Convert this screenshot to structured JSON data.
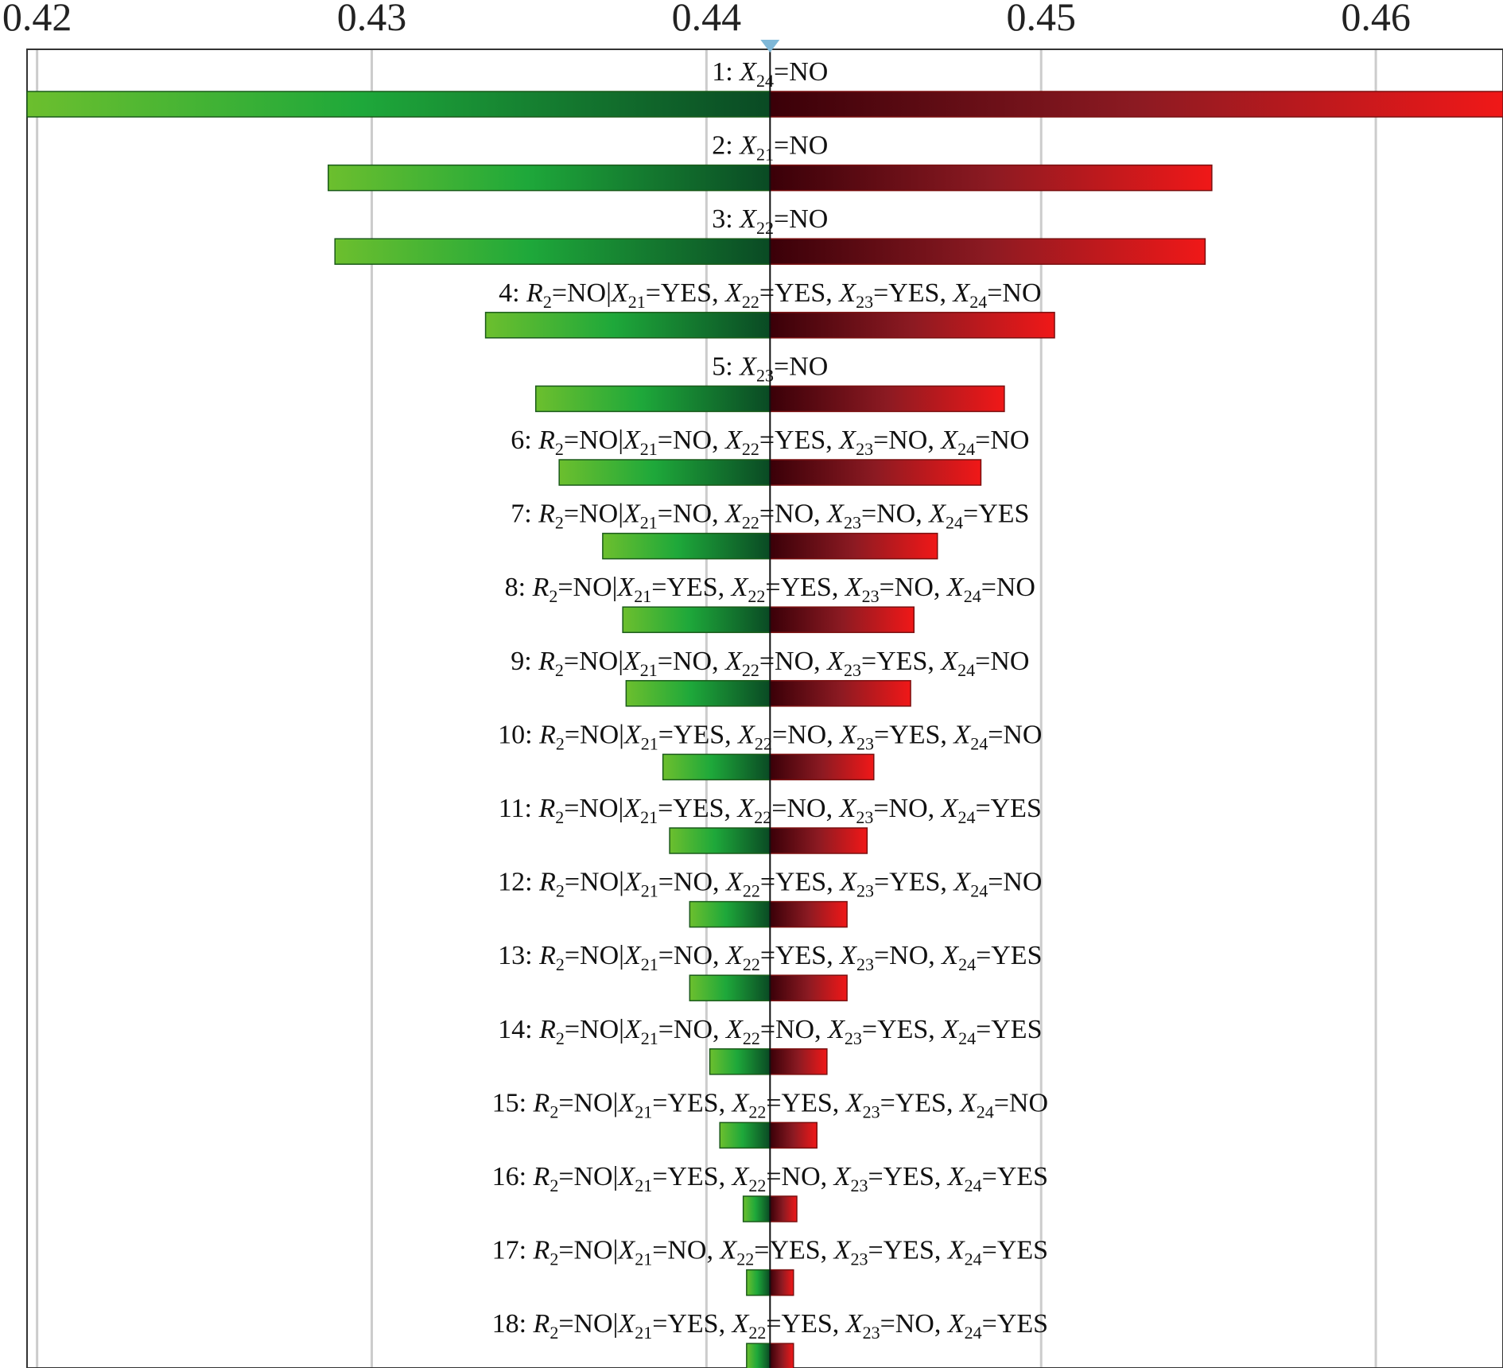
{
  "chart_data": {
    "type": "bar",
    "subtype": "tornado",
    "title": "",
    "xlabel": "",
    "ylabel": "",
    "xlim": [
      0.4197,
      0.4638
    ],
    "xticks": [
      0.42,
      0.43,
      0.44,
      0.45,
      0.46
    ],
    "xtick_labels": [
      "0.42",
      "0.43",
      "0.44",
      "0.45",
      "0.46"
    ],
    "grid": true,
    "base_value": 0.4419,
    "colors": {
      "low_light": "#6cbf2e",
      "low_mid": "#1ea83a",
      "low_dark": "#0a4a24",
      "high_dark": "#3a0008",
      "high_mid": "#8c1a22",
      "high_light": "#f01818",
      "grid": "#cccccc",
      "marker": "#7fb8d8"
    },
    "bars": [
      {
        "rank": 1,
        "label": "1: X24=NO",
        "parts": [
          {
            "t": "1: "
          },
          {
            "t": "X",
            "i": 1
          },
          {
            "t": "24",
            "s": 1
          },
          {
            "t": "=NO"
          }
        ],
        "low": 0.4197,
        "high": 0.4638
      },
      {
        "rank": 2,
        "label": "2: X21=NO",
        "parts": [
          {
            "t": "2: "
          },
          {
            "t": "X",
            "i": 1
          },
          {
            "t": "21",
            "s": 1
          },
          {
            "t": "=NO"
          }
        ],
        "low": 0.4287,
        "high": 0.4551
      },
      {
        "rank": 3,
        "label": "3: X22=NO",
        "parts": [
          {
            "t": "3: "
          },
          {
            "t": "X",
            "i": 1
          },
          {
            "t": "22",
            "s": 1
          },
          {
            "t": "=NO"
          }
        ],
        "low": 0.4289,
        "high": 0.4549
      },
      {
        "rank": 4,
        "label": "4: R2=NO|X21=YES, X22=YES, X23=YES, X24=NO",
        "parts": [
          {
            "t": "4: "
          },
          {
            "t": "R",
            "i": 1
          },
          {
            "t": "2",
            "s": 1
          },
          {
            "t": "=NO|"
          },
          {
            "t": "X",
            "i": 1
          },
          {
            "t": "21",
            "s": 1
          },
          {
            "t": "=YES, "
          },
          {
            "t": "X",
            "i": 1
          },
          {
            "t": "22",
            "s": 1
          },
          {
            "t": "=YES, "
          },
          {
            "t": "X",
            "i": 1
          },
          {
            "t": "23",
            "s": 1
          },
          {
            "t": "=YES, "
          },
          {
            "t": "X",
            "i": 1
          },
          {
            "t": "24",
            "s": 1
          },
          {
            "t": "=NO"
          }
        ],
        "low": 0.4334,
        "high": 0.4504
      },
      {
        "rank": 5,
        "label": "5: X23=NO",
        "parts": [
          {
            "t": "5: "
          },
          {
            "t": "X",
            "i": 1
          },
          {
            "t": "23",
            "s": 1
          },
          {
            "t": "=NO"
          }
        ],
        "low": 0.4349,
        "high": 0.4489
      },
      {
        "rank": 6,
        "label": "6: R2=NO|X21=NO, X22=YES, X23=NO, X24=NO",
        "parts": [
          {
            "t": "6: "
          },
          {
            "t": "R",
            "i": 1
          },
          {
            "t": "2",
            "s": 1
          },
          {
            "t": "=NO|"
          },
          {
            "t": "X",
            "i": 1
          },
          {
            "t": "21",
            "s": 1
          },
          {
            "t": "=NO, "
          },
          {
            "t": "X",
            "i": 1
          },
          {
            "t": "22",
            "s": 1
          },
          {
            "t": "=YES, "
          },
          {
            "t": "X",
            "i": 1
          },
          {
            "t": "23",
            "s": 1
          },
          {
            "t": "=NO, "
          },
          {
            "t": "X",
            "i": 1
          },
          {
            "t": "24",
            "s": 1
          },
          {
            "t": "=NO"
          }
        ],
        "low": 0.4356,
        "high": 0.4482
      },
      {
        "rank": 7,
        "label": "7: R2=NO|X21=NO, X22=NO, X23=NO, X24=YES",
        "parts": [
          {
            "t": "7: "
          },
          {
            "t": "R",
            "i": 1
          },
          {
            "t": "2",
            "s": 1
          },
          {
            "t": "=NO|"
          },
          {
            "t": "X",
            "i": 1
          },
          {
            "t": "21",
            "s": 1
          },
          {
            "t": "=NO, "
          },
          {
            "t": "X",
            "i": 1
          },
          {
            "t": "22",
            "s": 1
          },
          {
            "t": "=NO, "
          },
          {
            "t": "X",
            "i": 1
          },
          {
            "t": "23",
            "s": 1
          },
          {
            "t": "=NO, "
          },
          {
            "t": "X",
            "i": 1
          },
          {
            "t": "24",
            "s": 1
          },
          {
            "t": "=YES"
          }
        ],
        "low": 0.4369,
        "high": 0.4469
      },
      {
        "rank": 8,
        "label": "8: R2=NO|X21=YES, X22=YES, X23=NO, X24=NO",
        "parts": [
          {
            "t": "8: "
          },
          {
            "t": "R",
            "i": 1
          },
          {
            "t": "2",
            "s": 1
          },
          {
            "t": "=NO|"
          },
          {
            "t": "X",
            "i": 1
          },
          {
            "t": "21",
            "s": 1
          },
          {
            "t": "=YES, "
          },
          {
            "t": "X",
            "i": 1
          },
          {
            "t": "22",
            "s": 1
          },
          {
            "t": "=YES, "
          },
          {
            "t": "X",
            "i": 1
          },
          {
            "t": "23",
            "s": 1
          },
          {
            "t": "=NO, "
          },
          {
            "t": "X",
            "i": 1
          },
          {
            "t": "24",
            "s": 1
          },
          {
            "t": "=NO"
          }
        ],
        "low": 0.4375,
        "high": 0.4462
      },
      {
        "rank": 9,
        "label": "9: R2=NO|X21=NO, X22=NO, X23=YES, X24=NO",
        "parts": [
          {
            "t": "9: "
          },
          {
            "t": "R",
            "i": 1
          },
          {
            "t": "2",
            "s": 1
          },
          {
            "t": "=NO|"
          },
          {
            "t": "X",
            "i": 1
          },
          {
            "t": "21",
            "s": 1
          },
          {
            "t": "=NO, "
          },
          {
            "t": "X",
            "i": 1
          },
          {
            "t": "22",
            "s": 1
          },
          {
            "t": "=NO, "
          },
          {
            "t": "X",
            "i": 1
          },
          {
            "t": "23",
            "s": 1
          },
          {
            "t": "=YES, "
          },
          {
            "t": "X",
            "i": 1
          },
          {
            "t": "24",
            "s": 1
          },
          {
            "t": "=NO"
          }
        ],
        "low": 0.4376,
        "high": 0.4461
      },
      {
        "rank": 10,
        "label": "10: R2=NO|X21=YES, X22=NO, X23=YES, X24=NO",
        "parts": [
          {
            "t": "10: "
          },
          {
            "t": "R",
            "i": 1
          },
          {
            "t": "2",
            "s": 1
          },
          {
            "t": "=NO|"
          },
          {
            "t": "X",
            "i": 1
          },
          {
            "t": "21",
            "s": 1
          },
          {
            "t": "=YES, "
          },
          {
            "t": "X",
            "i": 1
          },
          {
            "t": "22",
            "s": 1
          },
          {
            "t": "=NO, "
          },
          {
            "t": "X",
            "i": 1
          },
          {
            "t": "23",
            "s": 1
          },
          {
            "t": "=YES, "
          },
          {
            "t": "X",
            "i": 1
          },
          {
            "t": "24",
            "s": 1
          },
          {
            "t": "=NO"
          }
        ],
        "low": 0.4387,
        "high": 0.445
      },
      {
        "rank": 11,
        "label": "11: R2=NO|X21=YES, X22=NO, X23=NO, X24=YES",
        "parts": [
          {
            "t": "11: "
          },
          {
            "t": "R",
            "i": 1
          },
          {
            "t": "2",
            "s": 1
          },
          {
            "t": "=NO|"
          },
          {
            "t": "X",
            "i": 1
          },
          {
            "t": "21",
            "s": 1
          },
          {
            "t": "=YES, "
          },
          {
            "t": "X",
            "i": 1
          },
          {
            "t": "22",
            "s": 1
          },
          {
            "t": "=NO, "
          },
          {
            "t": "X",
            "i": 1
          },
          {
            "t": "23",
            "s": 1
          },
          {
            "t": "=NO, "
          },
          {
            "t": "X",
            "i": 1
          },
          {
            "t": "24",
            "s": 1
          },
          {
            "t": "=YES"
          }
        ],
        "low": 0.4389,
        "high": 0.4448
      },
      {
        "rank": 12,
        "label": "12: R2=NO|X21=NO, X22=YES, X23=YES, X24=NO",
        "parts": [
          {
            "t": "12: "
          },
          {
            "t": "R",
            "i": 1
          },
          {
            "t": "2",
            "s": 1
          },
          {
            "t": "=NO|"
          },
          {
            "t": "X",
            "i": 1
          },
          {
            "t": "21",
            "s": 1
          },
          {
            "t": "=NO, "
          },
          {
            "t": "X",
            "i": 1
          },
          {
            "t": "22",
            "s": 1
          },
          {
            "t": "=YES, "
          },
          {
            "t": "X",
            "i": 1
          },
          {
            "t": "23",
            "s": 1
          },
          {
            "t": "=YES, "
          },
          {
            "t": "X",
            "i": 1
          },
          {
            "t": "24",
            "s": 1
          },
          {
            "t": "=NO"
          }
        ],
        "low": 0.4395,
        "high": 0.4442
      },
      {
        "rank": 13,
        "label": "13: R2=NO|X21=NO, X22=YES, X23=NO, X24=YES",
        "parts": [
          {
            "t": "13: "
          },
          {
            "t": "R",
            "i": 1
          },
          {
            "t": "2",
            "s": 1
          },
          {
            "t": "=NO|"
          },
          {
            "t": "X",
            "i": 1
          },
          {
            "t": "21",
            "s": 1
          },
          {
            "t": "=NO, "
          },
          {
            "t": "X",
            "i": 1
          },
          {
            "t": "22",
            "s": 1
          },
          {
            "t": "=YES, "
          },
          {
            "t": "X",
            "i": 1
          },
          {
            "t": "23",
            "s": 1
          },
          {
            "t": "=NO, "
          },
          {
            "t": "X",
            "i": 1
          },
          {
            "t": "24",
            "s": 1
          },
          {
            "t": "=YES"
          }
        ],
        "low": 0.4395,
        "high": 0.4442
      },
      {
        "rank": 14,
        "label": "14: R2=NO|X21=NO, X22=NO, X23=YES, X24=YES",
        "parts": [
          {
            "t": "14: "
          },
          {
            "t": "R",
            "i": 1
          },
          {
            "t": "2",
            "s": 1
          },
          {
            "t": "=NO|"
          },
          {
            "t": "X",
            "i": 1
          },
          {
            "t": "21",
            "s": 1
          },
          {
            "t": "=NO, "
          },
          {
            "t": "X",
            "i": 1
          },
          {
            "t": "22",
            "s": 1
          },
          {
            "t": "=NO, "
          },
          {
            "t": "X",
            "i": 1
          },
          {
            "t": "23",
            "s": 1
          },
          {
            "t": "=YES, "
          },
          {
            "t": "X",
            "i": 1
          },
          {
            "t": "24",
            "s": 1
          },
          {
            "t": "=YES"
          }
        ],
        "low": 0.4401,
        "high": 0.4436
      },
      {
        "rank": 15,
        "label": "15: R2=NO|X21=YES, X22=YES, X23=YES, X24=NO",
        "parts": [
          {
            "t": "15: "
          },
          {
            "t": "R",
            "i": 1
          },
          {
            "t": "2",
            "s": 1
          },
          {
            "t": "=NO|"
          },
          {
            "t": "X",
            "i": 1
          },
          {
            "t": "21",
            "s": 1
          },
          {
            "t": "=YES, "
          },
          {
            "t": "X",
            "i": 1
          },
          {
            "t": "22",
            "s": 1
          },
          {
            "t": "=YES, "
          },
          {
            "t": "X",
            "i": 1
          },
          {
            "t": "23",
            "s": 1
          },
          {
            "t": "=YES, "
          },
          {
            "t": "X",
            "i": 1
          },
          {
            "t": "24",
            "s": 1
          },
          {
            "t": "=NO"
          }
        ],
        "low": 0.4404,
        "high": 0.4433
      },
      {
        "rank": 16,
        "label": "16: R2=NO|X21=YES, X22=NO, X23=YES, X24=YES",
        "parts": [
          {
            "t": "16: "
          },
          {
            "t": "R",
            "i": 1
          },
          {
            "t": "2",
            "s": 1
          },
          {
            "t": "=NO|"
          },
          {
            "t": "X",
            "i": 1
          },
          {
            "t": "21",
            "s": 1
          },
          {
            "t": "=YES, "
          },
          {
            "t": "X",
            "i": 1
          },
          {
            "t": "22",
            "s": 1
          },
          {
            "t": "=NO, "
          },
          {
            "t": "X",
            "i": 1
          },
          {
            "t": "23",
            "s": 1
          },
          {
            "t": "=YES, "
          },
          {
            "t": "X",
            "i": 1
          },
          {
            "t": "24",
            "s": 1
          },
          {
            "t": "=YES"
          }
        ],
        "low": 0.4411,
        "high": 0.4427
      },
      {
        "rank": 17,
        "label": "17: R2=NO|X21=NO, X22=YES, X23=YES, X24=YES",
        "parts": [
          {
            "t": "17: "
          },
          {
            "t": "R",
            "i": 1
          },
          {
            "t": "2",
            "s": 1
          },
          {
            "t": "=NO|"
          },
          {
            "t": "X",
            "i": 1
          },
          {
            "t": "21",
            "s": 1
          },
          {
            "t": "=NO, "
          },
          {
            "t": "X",
            "i": 1
          },
          {
            "t": "22",
            "s": 1
          },
          {
            "t": "=YES, "
          },
          {
            "t": "X",
            "i": 1
          },
          {
            "t": "23",
            "s": 1
          },
          {
            "t": "=YES, "
          },
          {
            "t": "X",
            "i": 1
          },
          {
            "t": "24",
            "s": 1
          },
          {
            "t": "=YES"
          }
        ],
        "low": 0.4412,
        "high": 0.4426
      },
      {
        "rank": 18,
        "label": "18: R2=NO|X21=YES, X22=YES, X23=NO, X24=YES",
        "parts": [
          {
            "t": "18: "
          },
          {
            "t": "R",
            "i": 1
          },
          {
            "t": "2",
            "s": 1
          },
          {
            "t": "=NO|"
          },
          {
            "t": "X",
            "i": 1
          },
          {
            "t": "21",
            "s": 1
          },
          {
            "t": "=YES, "
          },
          {
            "t": "X",
            "i": 1
          },
          {
            "t": "22",
            "s": 1
          },
          {
            "t": "=YES, "
          },
          {
            "t": "X",
            "i": 1
          },
          {
            "t": "23",
            "s": 1
          },
          {
            "t": "=NO, "
          },
          {
            "t": "X",
            "i": 1
          },
          {
            "t": "24",
            "s": 1
          },
          {
            "t": "=YES"
          }
        ],
        "low": 0.4412,
        "high": 0.4426
      }
    ]
  }
}
